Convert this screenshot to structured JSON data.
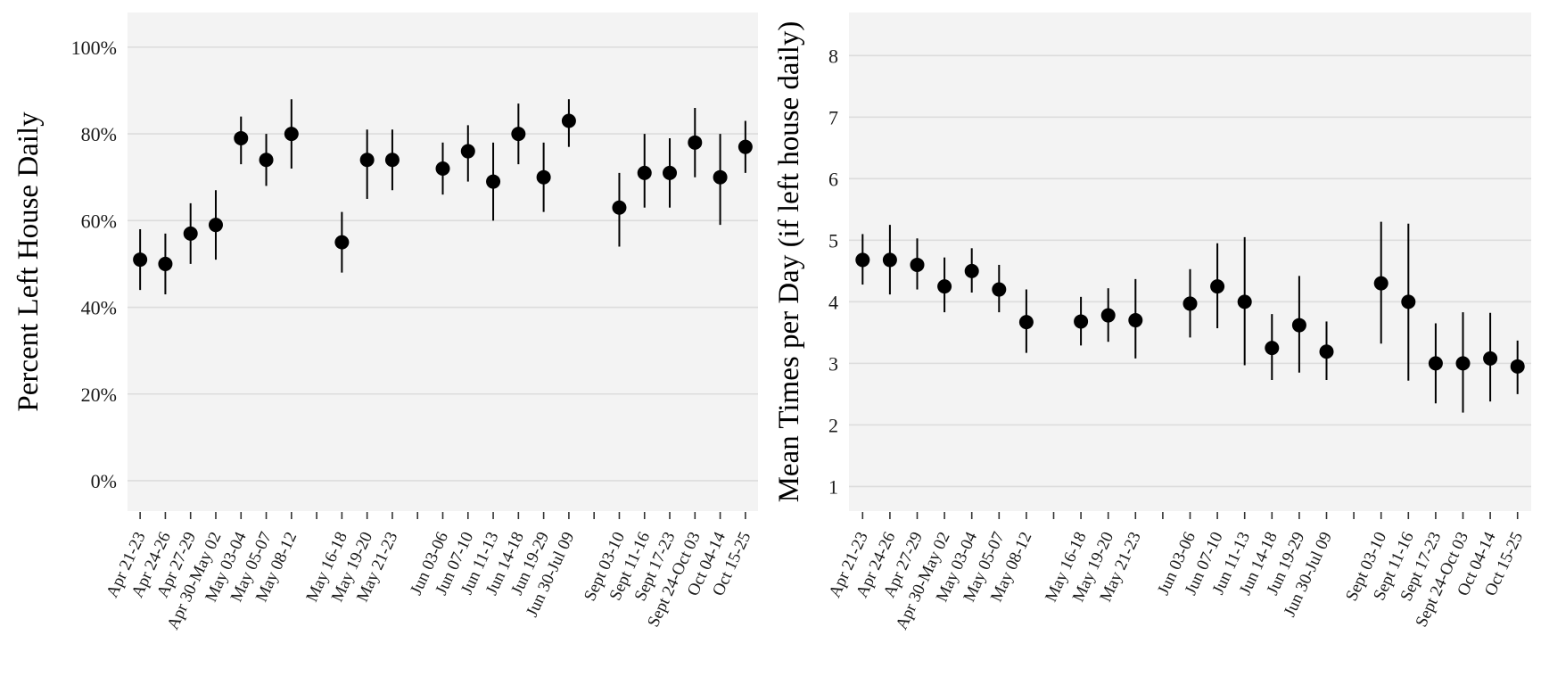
{
  "chart_data": [
    {
      "type": "scatter",
      "error_bars": true,
      "ylabel": "Percent Left House Daily",
      "xlabel": "",
      "yticks": [
        "0%",
        "20%",
        "40%",
        "60%",
        "80%",
        "100%"
      ],
      "ytick_values": [
        0,
        20,
        40,
        60,
        80,
        100
      ],
      "ylim": [
        -7,
        108
      ],
      "grid": true,
      "panel_background": "#f3f3f3",
      "grid_color": "#dcdcdc",
      "point_color": "#000000",
      "categories": [
        "Apr 21-23",
        "Apr 24-26",
        "Apr 27-29",
        "Apr 30-May 02",
        "May 03-04",
        "May 05-07",
        "May 08-12",
        "",
        "May 16-18",
        "May 19-20",
        "May 21-23",
        "",
        "Jun 03-06",
        "Jun 07-10",
        "Jun 11-13",
        "Jun 14-18",
        "Jun 19-29",
        "Jun 30-Jul 09",
        "",
        "Sept 03-10",
        "Sept 11-16",
        "Sept 17-23",
        "Sept 24-Oct 03",
        "Oct 04-14",
        "Oct 15-25"
      ],
      "values": [
        51,
        50,
        57,
        59,
        79,
        74,
        80,
        null,
        55,
        74,
        74,
        null,
        72,
        76,
        69,
        80,
        70,
        83,
        null,
        63,
        71,
        71,
        78,
        70,
        77
      ],
      "lower": [
        44,
        43,
        50,
        51,
        73,
        68,
        72,
        null,
        48,
        65,
        67,
        null,
        66,
        69,
        60,
        73,
        62,
        77,
        null,
        54,
        63,
        63,
        70,
        59,
        71
      ],
      "upper": [
        58,
        57,
        64,
        67,
        84,
        80,
        88,
        null,
        62,
        81,
        81,
        null,
        78,
        82,
        78,
        87,
        78,
        88,
        null,
        71,
        80,
        79,
        86,
        80,
        83
      ]
    },
    {
      "type": "scatter",
      "error_bars": true,
      "ylabel": "Mean Times per Day (if left house daily)",
      "xlabel": "",
      "yticks": [
        "1",
        "2",
        "3",
        "4",
        "5",
        "6",
        "7",
        "8"
      ],
      "ytick_values": [
        1,
        2,
        3,
        4,
        5,
        6,
        7,
        8
      ],
      "ylim": [
        0.6,
        8.7
      ],
      "grid": true,
      "panel_background": "#f3f3f3",
      "grid_color": "#dcdcdc",
      "point_color": "#000000",
      "categories": [
        "Apr 21-23",
        "Apr 24-26",
        "Apr 27-29",
        "Apr 30-May 02",
        "May 03-04",
        "May 05-07",
        "May 08-12",
        "",
        "May 16-18",
        "May 19-20",
        "May 21-23",
        "",
        "Jun 03-06",
        "Jun 07-10",
        "Jun 11-13",
        "Jun 14-18",
        "Jun 19-29",
        "Jun 30-Jul 09",
        "",
        "Sept 03-10",
        "Sept 11-16",
        "Sept 17-23",
        "Sept 24-Oct 03",
        "Oct 04-14",
        "Oct 15-25"
      ],
      "values": [
        4.68,
        4.68,
        4.6,
        4.25,
        4.5,
        4.2,
        3.67,
        null,
        3.68,
        3.78,
        3.7,
        null,
        3.97,
        4.25,
        4.0,
        3.25,
        3.62,
        3.19,
        null,
        4.3,
        4.0,
        3.0,
        3.0,
        3.08,
        2.95
      ],
      "lower": [
        4.28,
        4.12,
        4.2,
        3.83,
        4.15,
        3.83,
        3.17,
        null,
        3.29,
        3.35,
        3.08,
        null,
        3.42,
        3.57,
        2.97,
        2.73,
        2.85,
        2.73,
        null,
        3.32,
        2.72,
        2.35,
        2.2,
        2.38,
        2.5
      ],
      "upper": [
        5.1,
        5.25,
        5.03,
        4.72,
        4.87,
        4.6,
        4.2,
        null,
        4.08,
        4.22,
        4.37,
        null,
        4.53,
        4.95,
        5.05,
        3.8,
        4.42,
        3.68,
        null,
        5.3,
        5.27,
        3.65,
        3.83,
        3.82,
        3.37
      ]
    }
  ]
}
